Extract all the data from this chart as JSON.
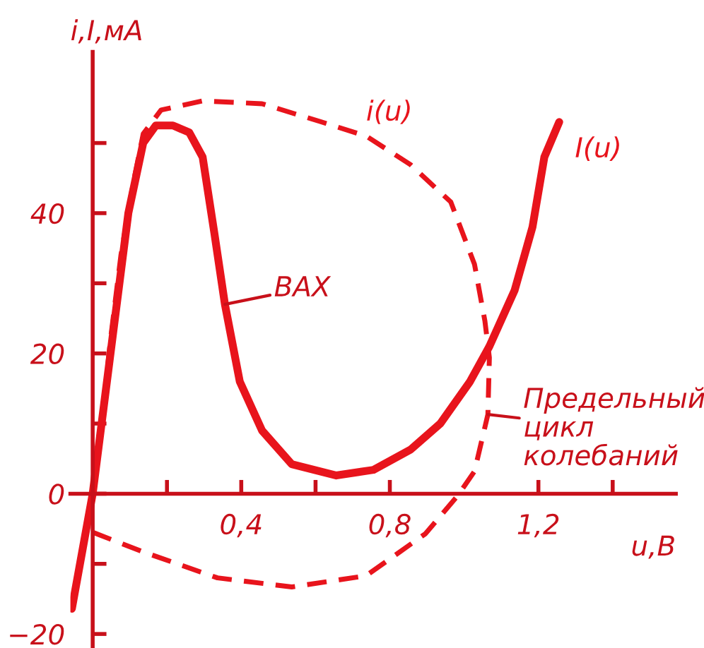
{
  "chart_data": {
    "type": "line",
    "xlabel": "u,В",
    "ylabel": "i,I,мА",
    "xlim": [
      -0.06,
      1.57
    ],
    "ylim": [
      -22,
      63
    ],
    "xticks": [
      {
        "value": 0.2,
        "label": null
      },
      {
        "value": 0.4,
        "label": "0,4"
      },
      {
        "value": 0.6,
        "label": null
      },
      {
        "value": 0.8,
        "label": "0,8"
      },
      {
        "value": 1.2,
        "label": "1,2"
      },
      {
        "value": 1.4,
        "label": null
      }
    ],
    "yticks": [
      {
        "value": -20,
        "label": "−20"
      },
      {
        "value": -10,
        "label": null
      },
      0,
      {
        "value": 10,
        "label": null
      },
      20,
      {
        "value": 30,
        "label": null
      },
      40,
      {
        "value": 50,
        "label": null
      }
    ],
    "grid": false,
    "legend": false,
    "marker": "none",
    "series": [
      {
        "name": "I(u)",
        "color": "#e8141c",
        "line_style": "solid",
        "x": [
          -0.056,
          0,
          0.096,
          0.136,
          0.17,
          0.216,
          0.26,
          0.296,
          0.328,
          0.356,
          0.396,
          0.456,
          0.536,
          0.656,
          0.756,
          0.856,
          0.936,
          1.016,
          1.068,
          1.136,
          1.184,
          1.216,
          1.256
        ],
        "values": [
          -16.4,
          0,
          40,
          50,
          52.5,
          52.5,
          51.5,
          48,
          37,
          27,
          16,
          9,
          4.2,
          2.6,
          3.4,
          6.3,
          10,
          16,
          21,
          29,
          38,
          48,
          53
        ]
      },
      {
        "name": "i(u)",
        "color": "#e8141c",
        "line_style": "dashed",
        "x": [
          0,
          0.136,
          0.336,
          0.536,
          0.736,
          0.896,
          0.984,
          1.028,
          1.064,
          1.068,
          1.056,
          1.028,
          0.964,
          0.856,
          0.736,
          0.616,
          0.456,
          0.296,
          0.184,
          0.136,
          0.108,
          0.076,
          0.048,
          0.024,
          0
        ],
        "values": [
          -5.5,
          -8.3,
          -12,
          -13.3,
          -11.7,
          -5.7,
          -0.2,
          3.2,
          11.3,
          19.4,
          24.6,
          32.7,
          41.6,
          46.9,
          51,
          53,
          55.6,
          56,
          54.7,
          51.3,
          44,
          34,
          22,
          10,
          0
        ]
      }
    ],
    "annotations": [
      {
        "text": "ВАХ",
        "x": 0.356,
        "y": 27
      },
      {
        "text": "Предельный\nцикл\nколебаний",
        "x": 1.064,
        "y": 11.3
      }
    ]
  }
}
